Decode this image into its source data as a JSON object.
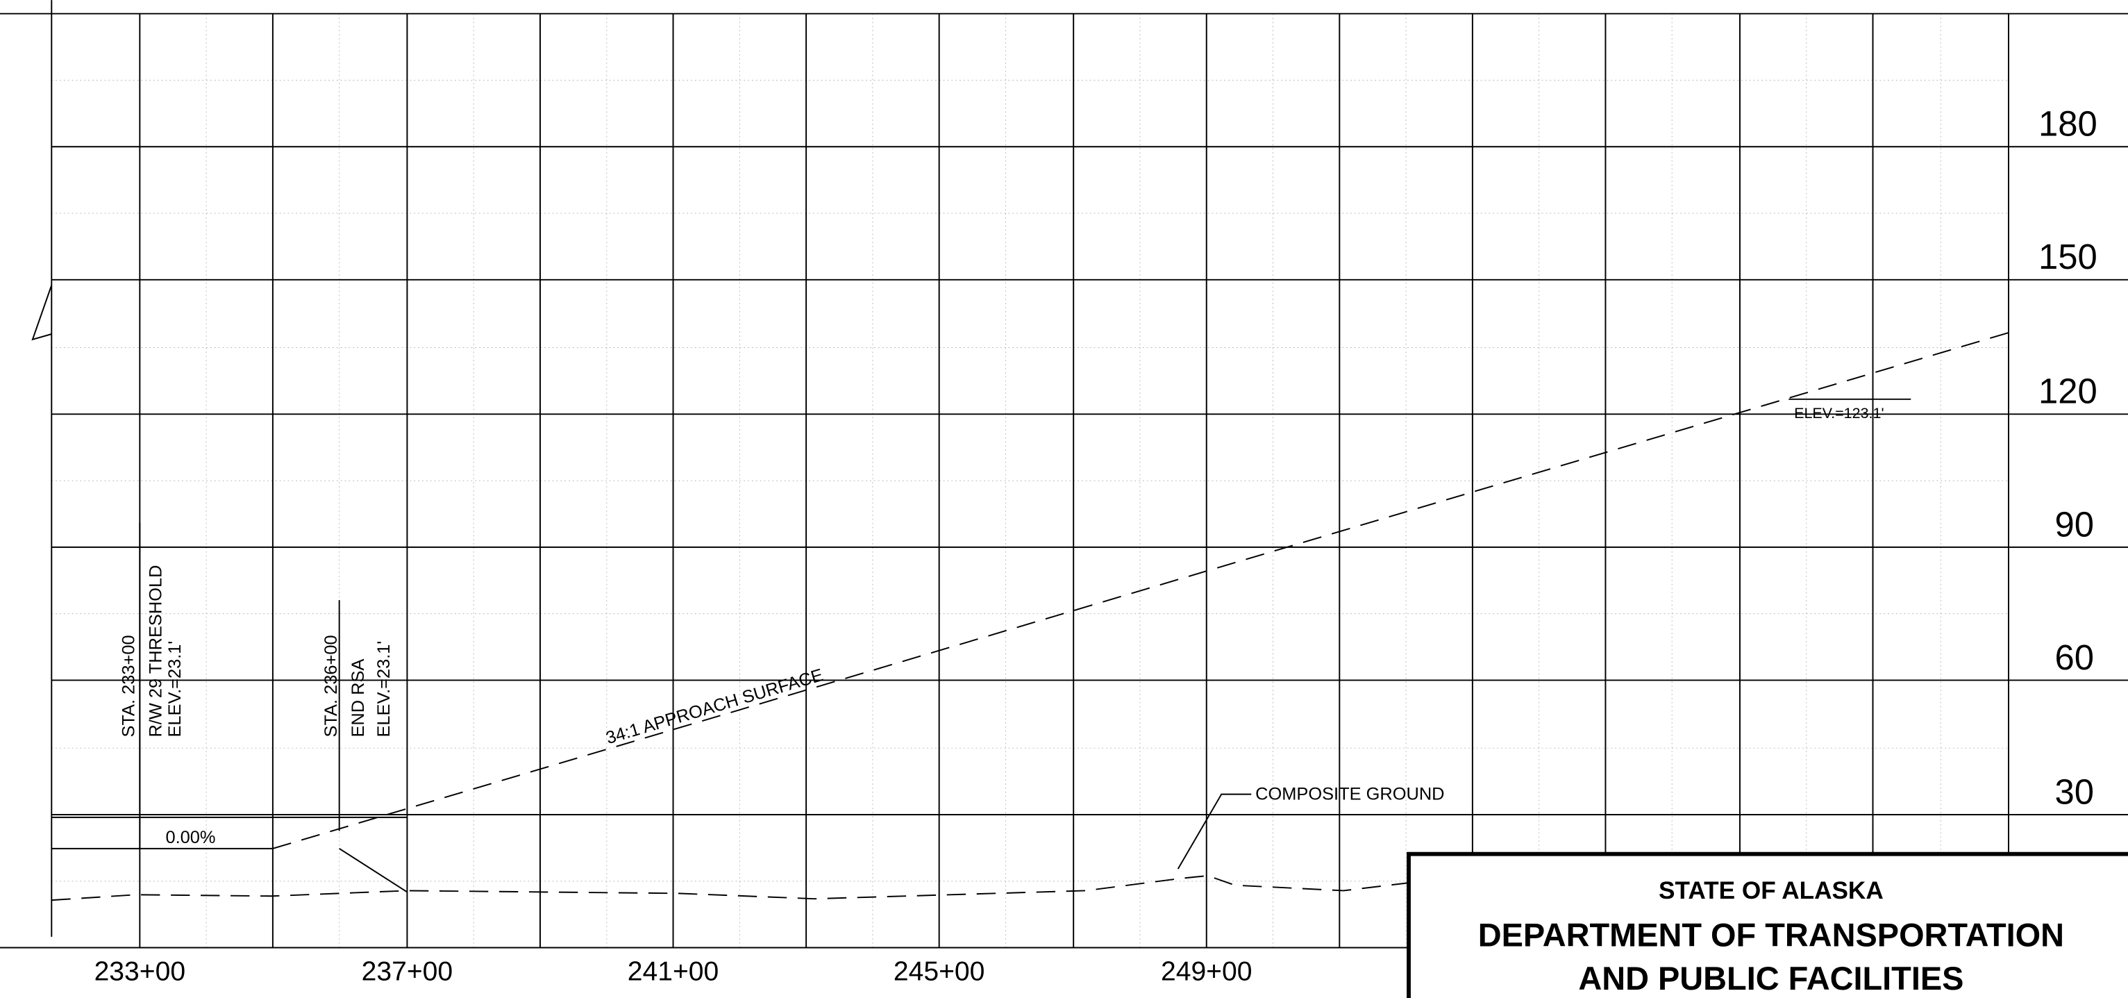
{
  "elevations": [
    180,
    150,
    120,
    90,
    60,
    30
  ],
  "stations": [
    "233+00",
    "237+00",
    "241+00",
    "245+00",
    "249+00"
  ],
  "annotations": {
    "threshold": {
      "station": "STA. 233+00",
      "name": "R/W 29 THRESHOLD",
      "elev": "ELEV.=23.1'"
    },
    "rsa": {
      "station": "STA. 236+00",
      "name": "END RSA",
      "elev": "ELEV.=23.1'"
    },
    "grade": "0.00%",
    "approach": "34:1 APPROACH SURFACE",
    "ground": "COMPOSITE GROUND",
    "end_elev": "ELEV.=123.1'"
  },
  "title_block": {
    "line1": "STATE OF ALASKA",
    "line2": "DEPARTMENT OF TRANSPORTATION",
    "line3": "AND PUBLIC FACILITIES"
  }
}
